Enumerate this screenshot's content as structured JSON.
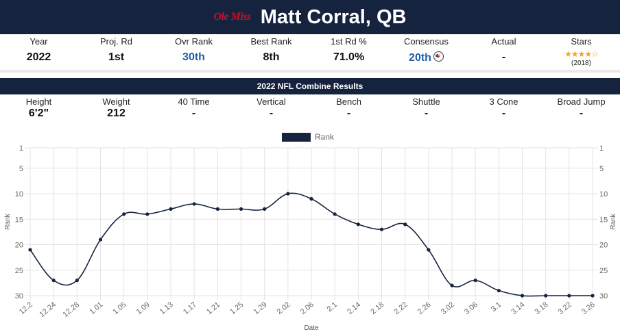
{
  "header": {
    "logo_text": "Ole Miss",
    "title": "Matt Corral, QB"
  },
  "stats": [
    {
      "label": "Year",
      "value": "2022"
    },
    {
      "label": "Proj. Rd",
      "value": "1st"
    },
    {
      "label": "Ovr Rank",
      "value": "30th",
      "color": "#1d5fa6"
    },
    {
      "label": "Best Rank",
      "value": "8th"
    },
    {
      "label": "1st Rd %",
      "value": "71.0%"
    },
    {
      "label": "Consensus",
      "value": "20th",
      "icon": "steelers-helmet-icon",
      "color": "#1d5fa6"
    },
    {
      "label": "Actual",
      "value": "-"
    },
    {
      "label": "Stars",
      "stars": 4,
      "max_stars": 5,
      "year": "(2018)"
    }
  ],
  "combine": {
    "title": "2022 NFL Combine Results",
    "items": [
      {
        "label": "Height",
        "value": "6'2\""
      },
      {
        "label": "Weight",
        "value": "212"
      },
      {
        "label": "40 Time",
        "value": "-"
      },
      {
        "label": "Vertical",
        "value": "-"
      },
      {
        "label": "Bench",
        "value": "-"
      },
      {
        "label": "Shuttle",
        "value": "-"
      },
      {
        "label": "3 Cone",
        "value": "-"
      },
      {
        "label": "Broad Jump",
        "value": "-"
      }
    ]
  },
  "chart_data": {
    "type": "line",
    "title": "",
    "xlabel": "Date",
    "ylabel": "Rank",
    "y_reversed": true,
    "ylim": [
      1,
      30
    ],
    "yticks": [
      1,
      5,
      10,
      15,
      20,
      25,
      30
    ],
    "grid": true,
    "legend_position": "top",
    "line_color": "#16233f",
    "categories": [
      "12.2",
      "12.24",
      "12.28",
      "1.01",
      "1.05",
      "1.09",
      "1.13",
      "1.17",
      "1.21",
      "1.25",
      "1.29",
      "2.02",
      "2.06",
      "2.1",
      "2.14",
      "2.18",
      "2.22",
      "2.26",
      "3.02",
      "3.06",
      "3.1",
      "3.14",
      "3.18",
      "3.22",
      "3.26"
    ],
    "series": [
      {
        "name": "Rank",
        "values": [
          21,
          27,
          27,
          19,
          14,
          14,
          13,
          12,
          13,
          13,
          13,
          10,
          11,
          14,
          16,
          17,
          16,
          21,
          28,
          27,
          29,
          30,
          30,
          30,
          30
        ]
      }
    ]
  }
}
